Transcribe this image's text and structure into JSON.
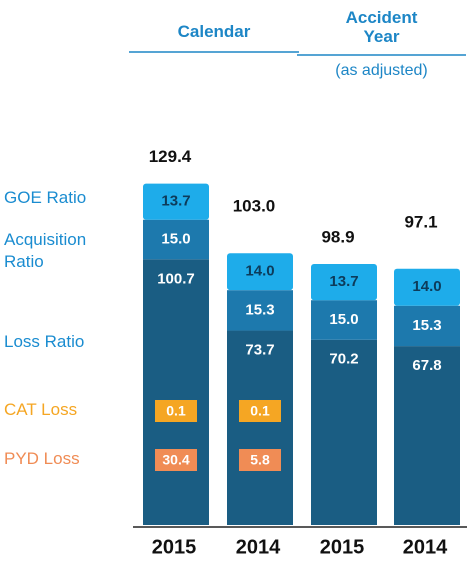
{
  "chart_data": {
    "type": "bar",
    "stacked": true,
    "categories": [
      "2015",
      "2014",
      "2015",
      "2014"
    ],
    "groups": [
      {
        "label": "Calendar",
        "span": [
          0,
          1
        ]
      },
      {
        "label": "Accident Year",
        "note": "(as adjusted)",
        "span": [
          2,
          3
        ]
      }
    ],
    "series": [
      {
        "name": "Loss Ratio",
        "color": "#1a5d83",
        "values": [
          100.7,
          73.7,
          70.2,
          67.8
        ],
        "value_labels": [
          "100.7",
          "73.7",
          "70.2",
          "67.8"
        ]
      },
      {
        "name": "Acquisition Ratio",
        "color": "#1d79ad",
        "values": [
          15.0,
          15.3,
          15.0,
          15.3
        ],
        "value_labels": [
          "15.0",
          "15.3",
          "15.0",
          "15.3"
        ]
      },
      {
        "name": "GOE Ratio",
        "color": "#1eacea",
        "values": [
          13.7,
          14.0,
          13.7,
          14.0
        ],
        "value_labels": [
          "13.7",
          "14.0",
          "13.7",
          "14.0"
        ]
      }
    ],
    "totals": {
      "values": [
        129.4,
        103.0,
        98.9,
        97.1
      ],
      "value_labels": [
        "129.4",
        "103.0",
        "98.9",
        "97.1"
      ]
    },
    "callouts": [
      {
        "name": "CAT Loss",
        "color": "#f5a623",
        "values": [
          0.1,
          0.1,
          null,
          null
        ],
        "value_labels": [
          "0.1",
          "0.1",
          null,
          null
        ]
      },
      {
        "name": "PYD Loss",
        "color": "#f08c55",
        "values": [
          30.4,
          5.8,
          null,
          null
        ],
        "value_labels": [
          "30.4",
          "5.8",
          null,
          null
        ]
      }
    ],
    "ylim": [
      0,
      130
    ]
  }
}
